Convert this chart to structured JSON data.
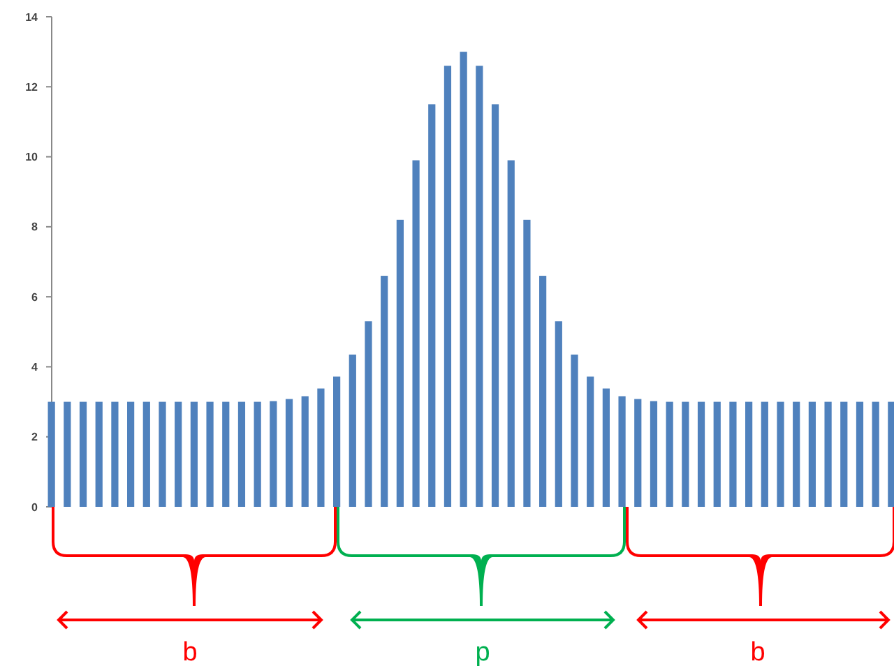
{
  "chart_data": {
    "type": "bar",
    "categories": [
      null,
      null,
      null,
      null,
      null,
      null,
      null,
      null,
      null,
      null,
      null,
      null,
      null,
      null,
      null,
      null,
      null,
      null,
      null,
      null,
      null,
      null,
      null,
      null,
      null,
      null,
      null,
      null,
      null,
      null,
      null,
      null,
      null,
      null,
      null,
      null,
      null,
      null,
      null,
      null,
      null,
      null,
      null,
      null,
      null,
      null,
      null,
      null,
      null,
      null,
      null,
      null,
      null,
      null
    ],
    "values": [
      3,
      3,
      3,
      3,
      3,
      3,
      3,
      3,
      3,
      3,
      3,
      3,
      3,
      3,
      3.02,
      3.08,
      3.16,
      3.38,
      3.72,
      4.35,
      5.3,
      6.6,
      8.2,
      9.9,
      11.5,
      12.6,
      13,
      12.6,
      11.5,
      9.9,
      8.2,
      6.6,
      5.3,
      4.35,
      3.72,
      3.38,
      3.16,
      3.08,
      3.02,
      3,
      3,
      3,
      3,
      3,
      3,
      3,
      3,
      3,
      3,
      3,
      3,
      3,
      3,
      3
    ],
    "color": "#4f81bd",
    "ylim": [
      0,
      14
    ],
    "yticks": [
      0,
      2,
      4,
      6,
      8,
      10,
      12,
      14
    ],
    "grid": false,
    "annotations": [
      "b",
      "p",
      "b"
    ]
  }
}
